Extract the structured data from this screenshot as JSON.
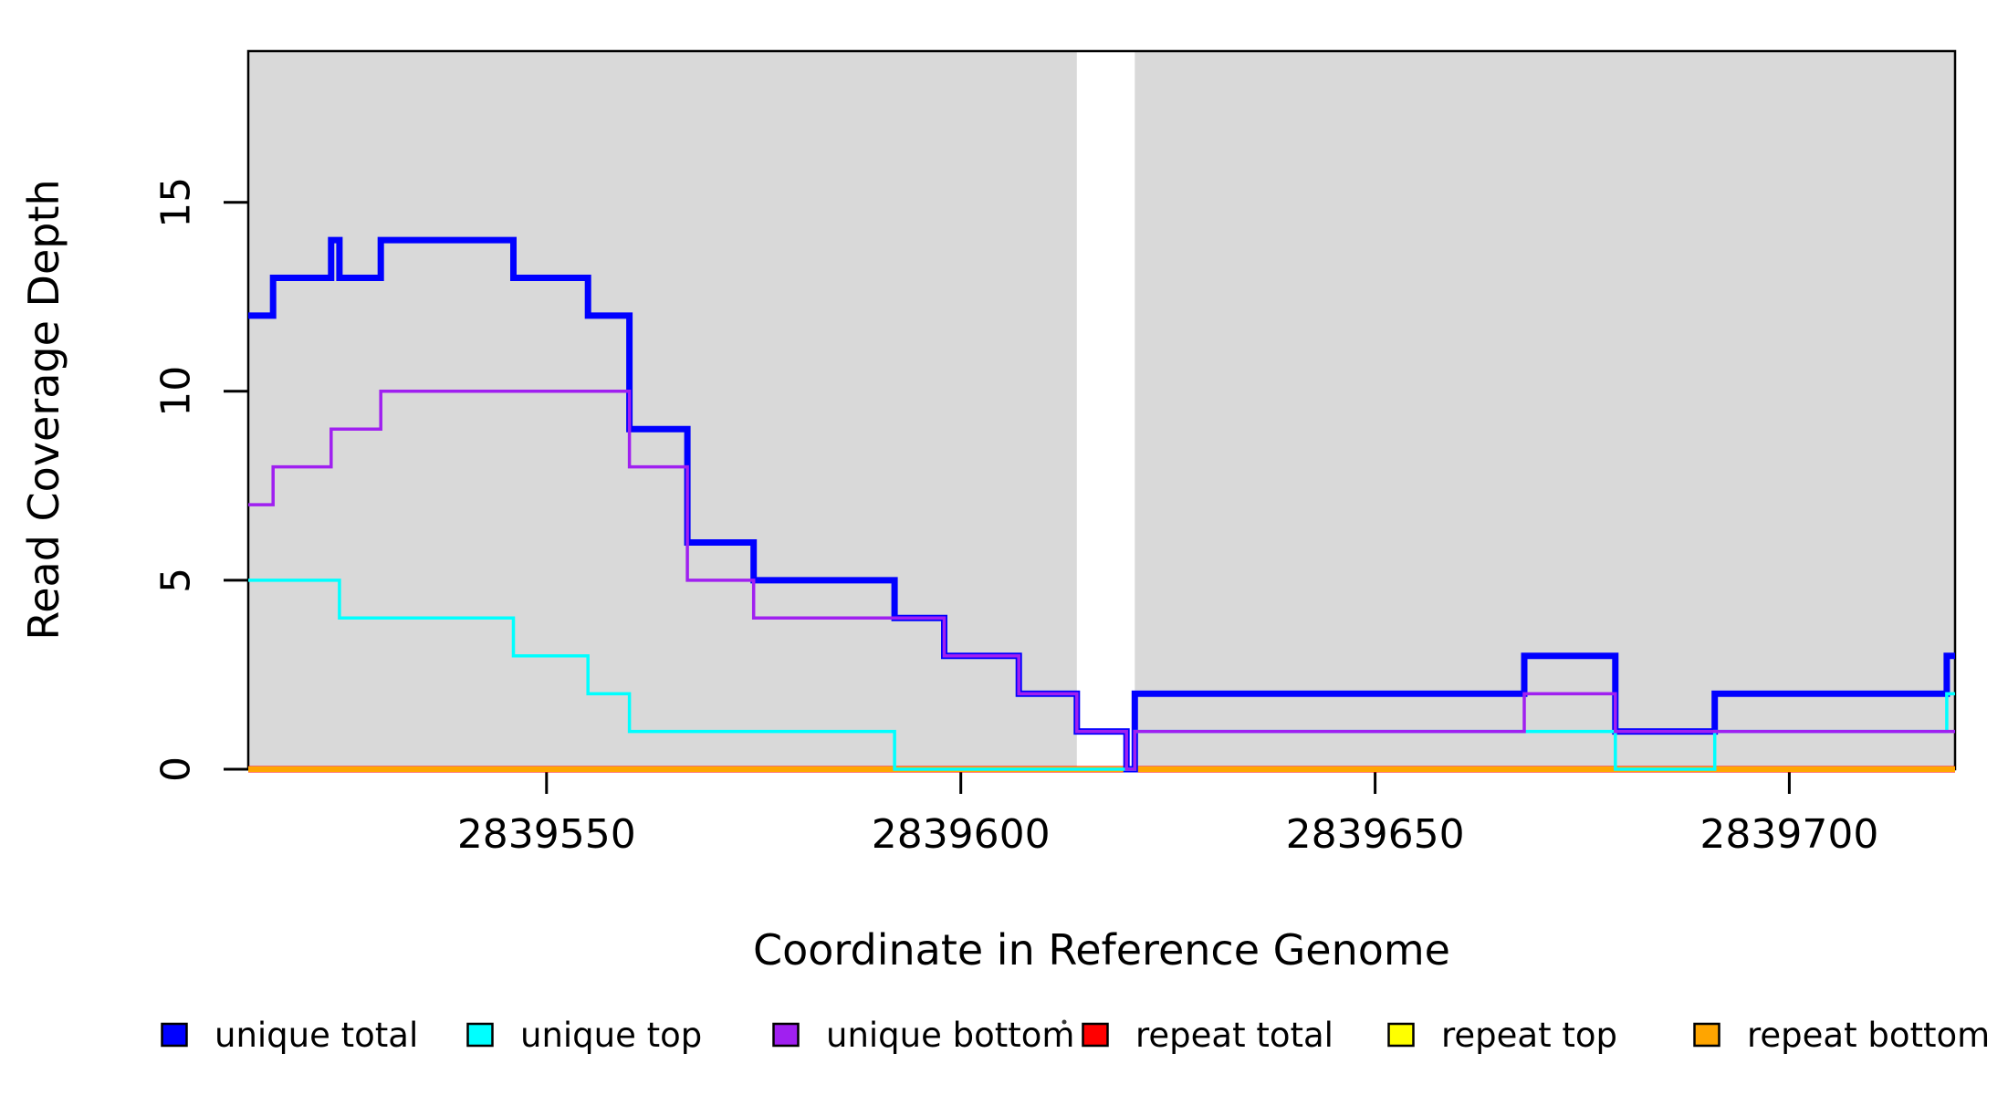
{
  "chart_data": {
    "type": "step-line",
    "title": "",
    "xlabel": "Coordinate in Reference Genome",
    "ylabel": "Read Coverage Depth",
    "xlim": [
      2839514,
      2839720
    ],
    "ylim": [
      0,
      19
    ],
    "x_ticks": [
      {
        "value": 2839550,
        "label": "2839550"
      },
      {
        "value": 2839600,
        "label": "2839600"
      },
      {
        "value": 2839650,
        "label": "2839650"
      },
      {
        "value": 2839700,
        "label": "2839700"
      }
    ],
    "y_ticks": [
      {
        "value": 0,
        "label": "0"
      },
      {
        "value": 5,
        "label": "5"
      },
      {
        "value": 10,
        "label": "10"
      },
      {
        "value": 15,
        "label": "15"
      }
    ],
    "panel": {
      "background_color": "#ffffff",
      "shaded_color": "#d9d9d9",
      "shaded_regions_x": [
        [
          2839514,
          2839614
        ],
        [
          2839621,
          2839720
        ]
      ]
    },
    "series": [
      {
        "name": "unique total",
        "color": "#0000ff",
        "line_width": 7,
        "segments": [
          [
            2839514,
            2839517,
            12
          ],
          [
            2839517,
            2839524,
            13
          ],
          [
            2839524,
            2839525,
            14
          ],
          [
            2839525,
            2839530,
            13
          ],
          [
            2839530,
            2839546,
            14
          ],
          [
            2839546,
            2839555,
            13
          ],
          [
            2839555,
            2839560,
            12
          ],
          [
            2839560,
            2839567,
            9
          ],
          [
            2839567,
            2839575,
            6
          ],
          [
            2839575,
            2839592,
            5
          ],
          [
            2839592,
            2839598,
            4
          ],
          [
            2839598,
            2839607,
            3
          ],
          [
            2839607,
            2839614,
            2
          ],
          [
            2839614,
            2839620,
            1
          ],
          [
            2839620,
            2839621,
            0
          ],
          [
            2839621,
            2839668,
            2
          ],
          [
            2839668,
            2839679,
            3
          ],
          [
            2839679,
            2839691,
            1
          ],
          [
            2839691,
            2839719,
            2
          ],
          [
            2839719,
            2839720,
            3
          ]
        ]
      },
      {
        "name": "unique top",
        "color": "#00ffff",
        "line_width": 3.5,
        "segments": [
          [
            2839514,
            2839525,
            5
          ],
          [
            2839525,
            2839546,
            4
          ],
          [
            2839546,
            2839555,
            3
          ],
          [
            2839555,
            2839560,
            2
          ],
          [
            2839560,
            2839592,
            1
          ],
          [
            2839592,
            2839621,
            0
          ],
          [
            2839621,
            2839679,
            1
          ],
          [
            2839679,
            2839691,
            0
          ],
          [
            2839691,
            2839719,
            1
          ],
          [
            2839719,
            2839720,
            2
          ]
        ]
      },
      {
        "name": "unique bottom",
        "color": "#a020f0",
        "line_width": 3.5,
        "segments": [
          [
            2839514,
            2839517,
            7
          ],
          [
            2839517,
            2839524,
            8
          ],
          [
            2839524,
            2839530,
            9
          ],
          [
            2839530,
            2839560,
            10
          ],
          [
            2839560,
            2839567,
            8
          ],
          [
            2839567,
            2839575,
            5
          ],
          [
            2839575,
            2839598,
            4
          ],
          [
            2839598,
            2839607,
            3
          ],
          [
            2839607,
            2839614,
            2
          ],
          [
            2839614,
            2839620,
            1
          ],
          [
            2839620,
            2839621,
            0
          ],
          [
            2839621,
            2839668,
            1
          ],
          [
            2839668,
            2839679,
            2
          ],
          [
            2839679,
            2839720,
            1
          ]
        ]
      },
      {
        "name": "repeat total",
        "color": "#ff0000",
        "line_width": 7,
        "segments": [
          [
            2839514,
            2839720,
            0
          ]
        ]
      },
      {
        "name": "repeat top",
        "color": "#ffff00",
        "line_width": 5.5,
        "segments": [
          [
            2839514,
            2839720,
            0
          ]
        ]
      },
      {
        "name": "repeat bottom",
        "color": "#ffa500",
        "line_width": 4.5,
        "segments": [
          [
            2839514,
            2839720,
            0
          ]
        ]
      }
    ],
    "draw_order": [
      "repeat total",
      "repeat top",
      "repeat bottom",
      "unique total",
      "unique top",
      "unique bottom"
    ],
    "legend": {
      "position": "bottom",
      "items": [
        {
          "label": "unique total",
          "color": "#0000ff"
        },
        {
          "label": "unique top",
          "color": "#00ffff"
        },
        {
          "label": "unique bottom",
          "color": "#a020f0"
        },
        {
          "label": "repeat total",
          "color": "#ff0000"
        },
        {
          "label": "repeat top",
          "color": "#ffff00"
        },
        {
          "label": "repeat bottom",
          "color": "#ffa500"
        }
      ]
    }
  }
}
